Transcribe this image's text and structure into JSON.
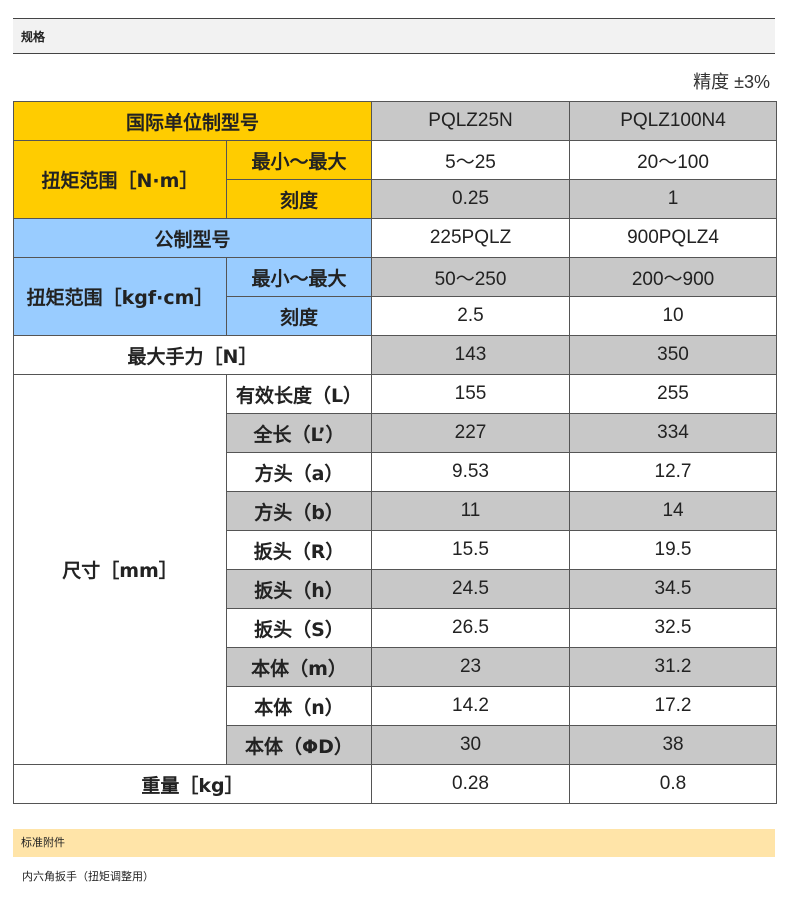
{
  "spec_section_title": "规格",
  "precision": "精度 ±3%",
  "si": {
    "model_label": "国际单位制型号",
    "models": [
      "PQLZ25N",
      "PQLZ100N4"
    ],
    "torque_label": "扭矩范围［N·m］",
    "minmax_label": "最小～最大",
    "minmax": [
      "5～25",
      "20～100"
    ],
    "scale_label": "刻度",
    "scale": [
      "0.25",
      "1"
    ]
  },
  "metric": {
    "model_label": "公制型号",
    "models": [
      "225PQLZ",
      "900PQLZ4"
    ],
    "torque_label": "扭矩范围［kgf·cm］",
    "minmax_label": "最小～最大",
    "minmax": [
      "50～250",
      "200～900"
    ],
    "scale_label": "刻度",
    "scale": [
      "2.5",
      "10"
    ]
  },
  "max_hand_force": {
    "label": "最大手力［N］",
    "values": [
      "143",
      "350"
    ]
  },
  "dimensions": {
    "label": "尺寸［mm］",
    "rows": [
      {
        "label": "有效长度（L）",
        "values": [
          "155",
          "255"
        ]
      },
      {
        "label": "全长（L’）",
        "values": [
          "227",
          "334"
        ]
      },
      {
        "label": "方头（a）",
        "values": [
          "9.53",
          "12.7"
        ]
      },
      {
        "label": "方头（b）",
        "values": [
          "11",
          "14"
        ]
      },
      {
        "label": "扳头（R）",
        "values": [
          "15.5",
          "19.5"
        ]
      },
      {
        "label": "扳头（h）",
        "values": [
          "24.5",
          "34.5"
        ]
      },
      {
        "label": "扳头（S）",
        "values": [
          "26.5",
          "32.5"
        ]
      },
      {
        "label": "本体（m）",
        "values": [
          "23",
          "31.2"
        ]
      },
      {
        "label": "本体（n）",
        "values": [
          "14.2",
          "17.2"
        ]
      },
      {
        "label": "本体（ΦD）",
        "values": [
          "30",
          "38"
        ]
      }
    ]
  },
  "weight": {
    "label": "重量［kg］",
    "values": [
      "0.28",
      "0.8"
    ]
  },
  "accessory_section_title": "标准附件",
  "accessory_text": "内六角扳手（扭矩调整用）",
  "colors": {
    "si_header": "#ffcc00",
    "metric_header": "#99ccff",
    "shaded_cell": "#c8c8c8",
    "accessory_bar": "#ffe4a8"
  }
}
